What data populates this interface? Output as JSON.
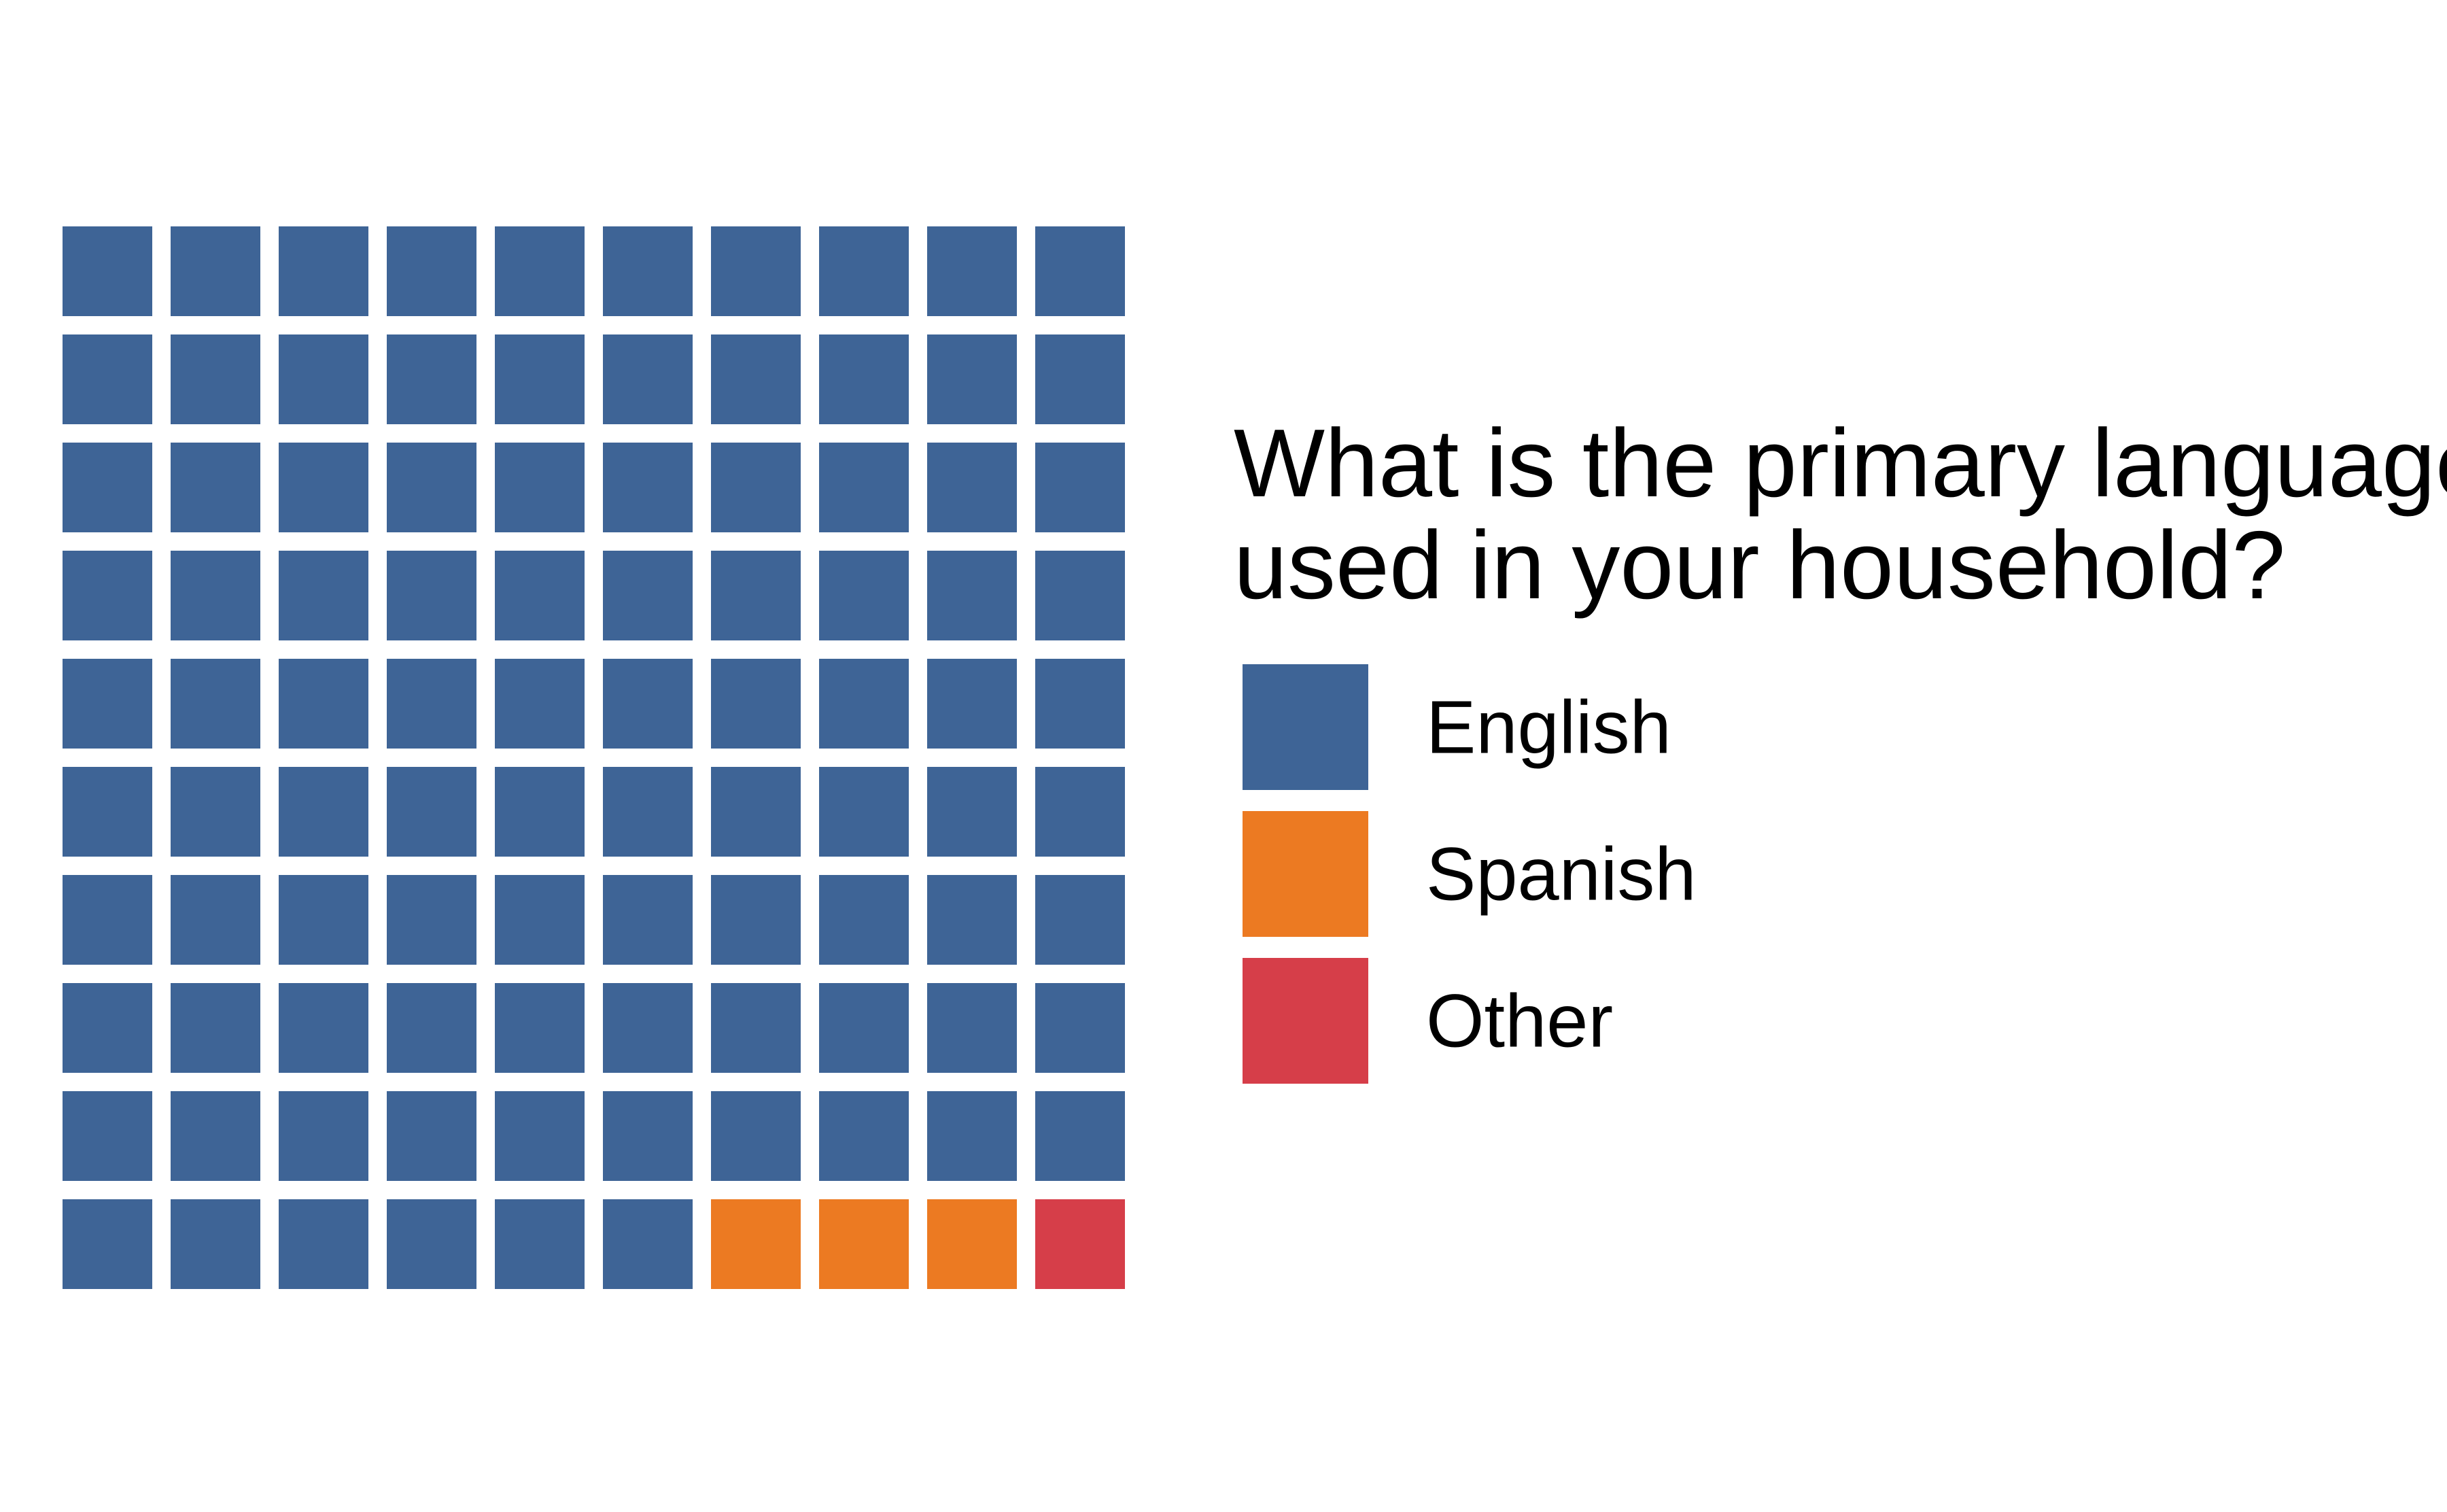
{
  "chart_data": {
    "type": "waffle",
    "grid": {
      "rows": 10,
      "columns": 10
    },
    "fill_order": "row-major from top-left",
    "categories": [
      "English",
      "Spanish",
      "Other"
    ],
    "values": [
      96,
      3,
      1
    ],
    "colors": [
      "#3E6496",
      "#EC7A22",
      "#D63E49"
    ],
    "legend": {
      "title_lines": [
        "What is the primary language",
        "used in your household?"
      ],
      "placement": "right"
    }
  }
}
